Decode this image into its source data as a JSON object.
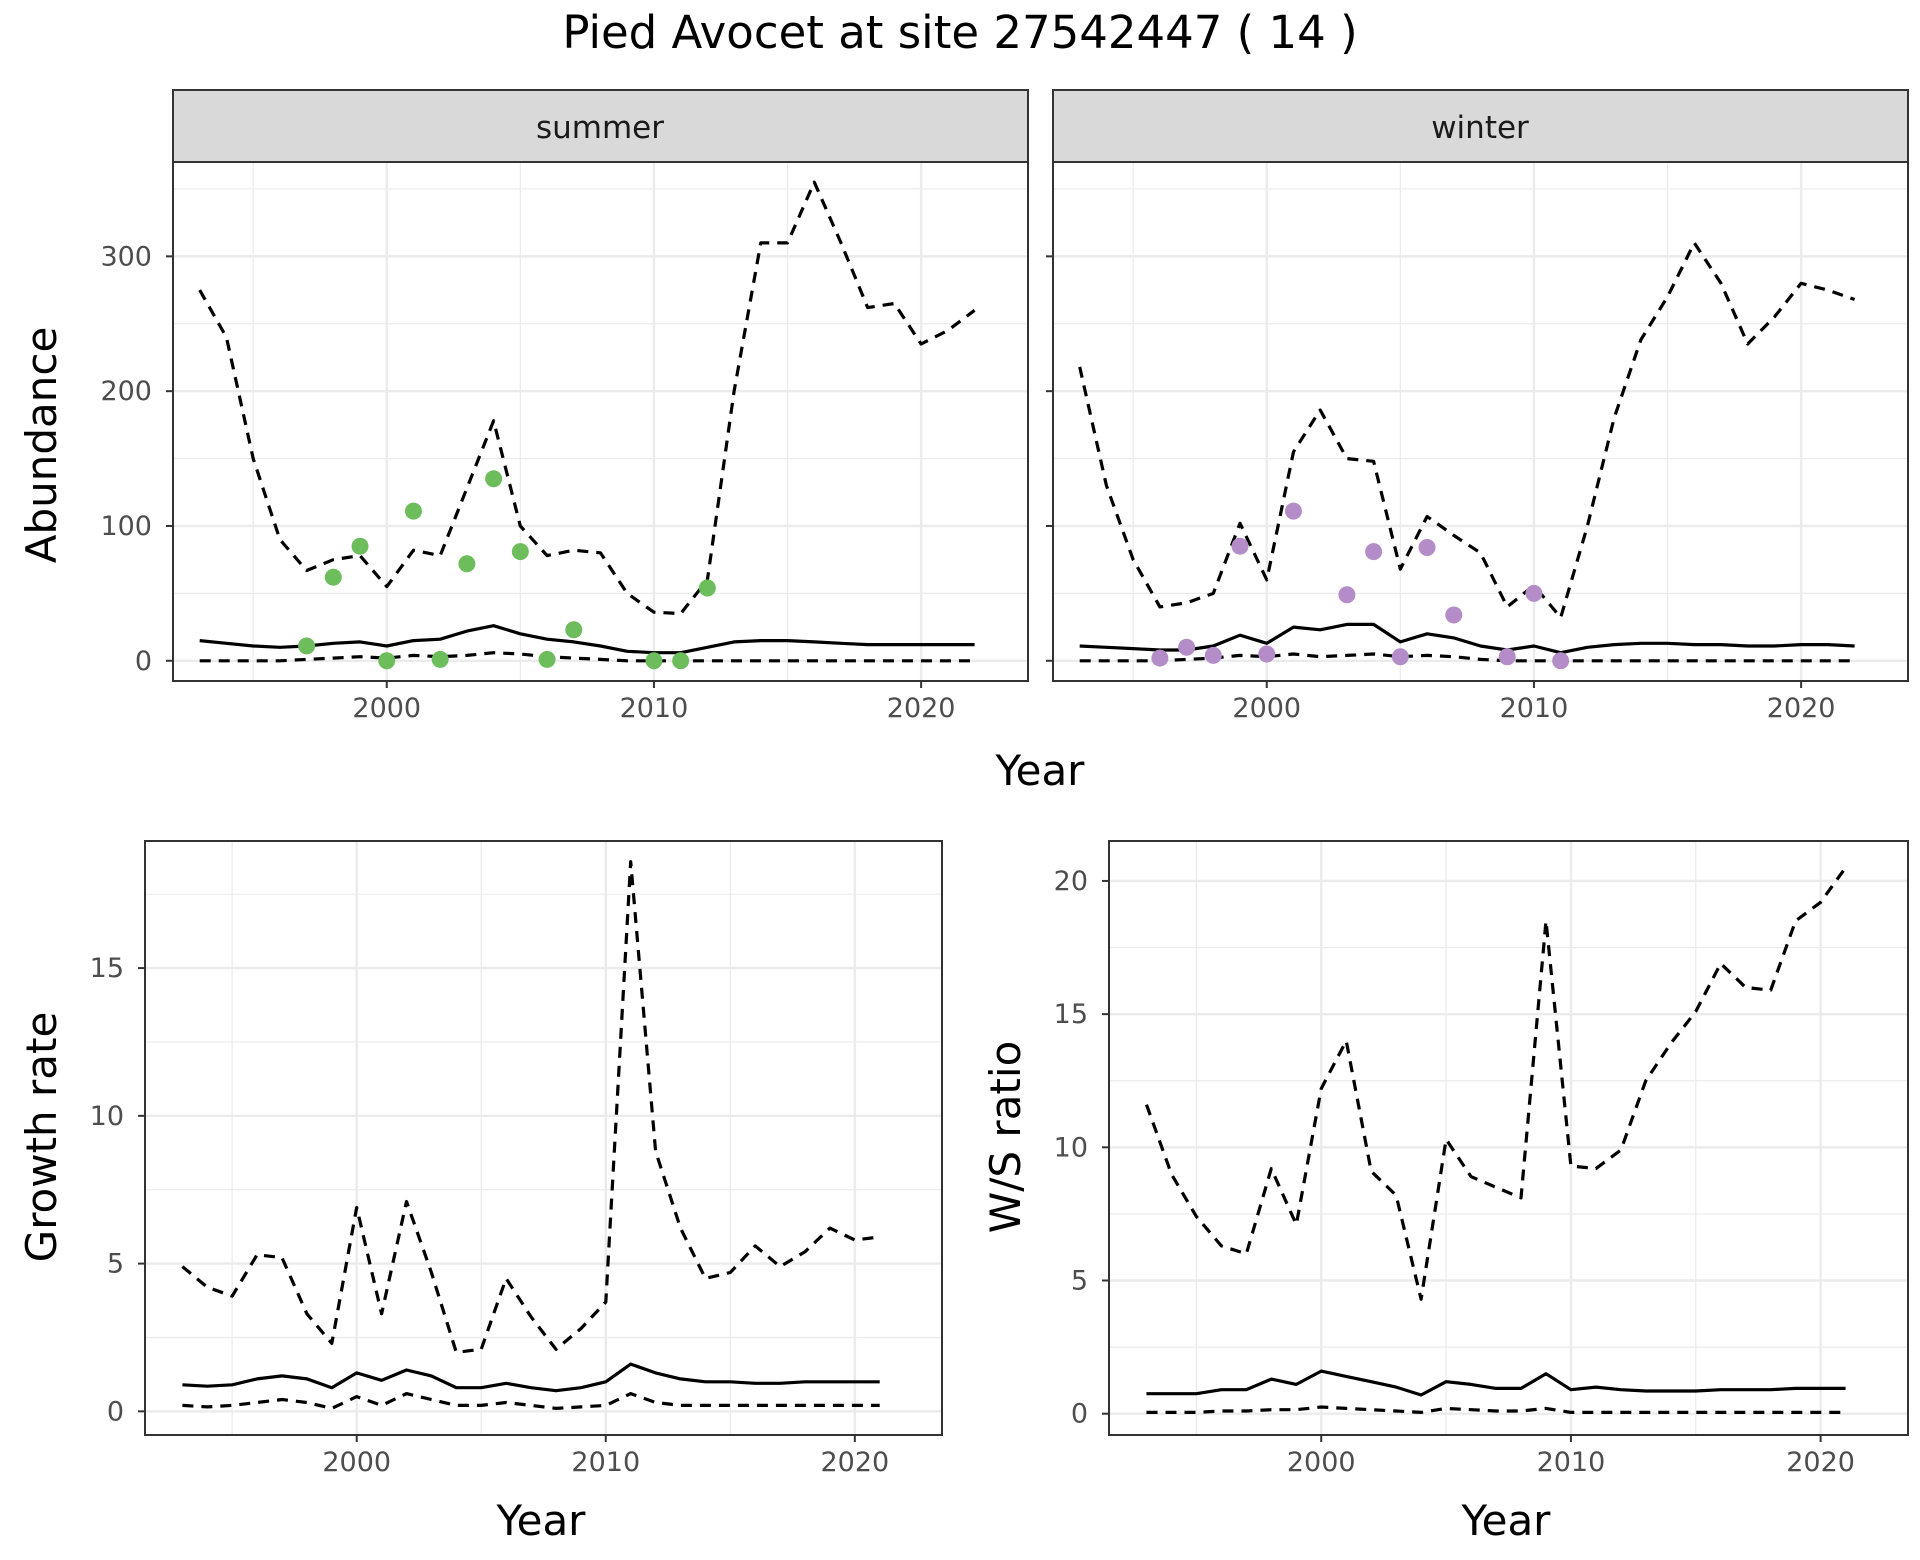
{
  "title": "Pied Avocet at site 27542447 ( 14 )",
  "colors": {
    "summer_points": "#6dbd5c",
    "winter_points": "#b48cc8",
    "line": "#000000",
    "strip_fill": "#d9d9d9",
    "grid": "#ebebeb"
  },
  "chart_data": [
    {
      "type": "line",
      "facet": "summer",
      "xlabel": "Year",
      "ylabel": "Abundance",
      "xlim": [
        1992,
        2024
      ],
      "ylim": [
        -15,
        370
      ],
      "xticks": [
        2000,
        2010,
        2020
      ],
      "yticks": [
        0,
        100,
        200,
        300
      ],
      "grid": true,
      "series": [
        {
          "style": "solid",
          "x": [
            1993,
            1994,
            1995,
            1996,
            1997,
            1998,
            1999,
            2000,
            2001,
            2002,
            2003,
            2004,
            2005,
            2006,
            2007,
            2008,
            2009,
            2010,
            2011,
            2012,
            2013,
            2014,
            2015,
            2016,
            2017,
            2018,
            2019,
            2020,
            2021,
            2022
          ],
          "values": [
            15,
            13,
            11,
            10,
            11,
            13,
            14,
            11,
            15,
            16,
            22,
            26,
            20,
            16,
            14,
            11,
            7,
            6,
            6,
            10,
            14,
            15,
            15,
            14,
            13,
            12,
            12,
            12,
            12,
            12
          ]
        },
        {
          "style": "dashed",
          "x": [
            1993,
            1994,
            1995,
            1996,
            1997,
            1998,
            1999,
            2000,
            2001,
            2002,
            2003,
            2004,
            2005,
            2006,
            2007,
            2008,
            2009,
            2010,
            2011,
            2012,
            2013,
            2014,
            2015,
            2016,
            2017,
            2018,
            2019,
            2020,
            2021,
            2022
          ],
          "values": [
            275,
            240,
            150,
            90,
            67,
            75,
            78,
            55,
            82,
            78,
            128,
            178,
            100,
            78,
            82,
            80,
            50,
            36,
            35,
            60,
            200,
            310,
            310,
            355,
            310,
            262,
            265,
            235,
            245,
            260
          ]
        },
        {
          "style": "dashed",
          "x": [
            1993,
            1994,
            1995,
            1996,
            1997,
            1998,
            1999,
            2000,
            2001,
            2002,
            2003,
            2004,
            2005,
            2006,
            2007,
            2008,
            2009,
            2010,
            2011,
            2012,
            2013,
            2014,
            2015,
            2016,
            2017,
            2018,
            2019,
            2020,
            2021,
            2022
          ],
          "values": [
            0,
            0,
            0,
            0,
            1,
            2,
            3,
            2,
            4,
            3,
            4,
            6,
            5,
            3,
            2,
            1,
            0,
            0,
            0,
            0,
            0,
            0,
            0,
            0,
            0,
            0,
            0,
            0,
            0,
            0
          ]
        }
      ],
      "points": {
        "x": [
          1997,
          1998,
          1999,
          2000,
          2001,
          2002,
          2003,
          2004,
          2005,
          2006,
          2007,
          2010,
          2011,
          2012
        ],
        "values": [
          11,
          62,
          85,
          0,
          111,
          1,
          72,
          135,
          81,
          1,
          23,
          0,
          0,
          54
        ]
      }
    },
    {
      "type": "line",
      "facet": "winter",
      "xlabel": "Year",
      "ylabel": "Abundance",
      "xlim": [
        1992,
        2024
      ],
      "ylim": [
        -15,
        370
      ],
      "xticks": [
        2000,
        2010,
        2020
      ],
      "yticks": [
        0,
        100,
        200,
        300
      ],
      "grid": true,
      "series": [
        {
          "style": "solid",
          "x": [
            1993,
            1994,
            1995,
            1996,
            1997,
            1998,
            1999,
            2000,
            2001,
            2002,
            2003,
            2004,
            2005,
            2006,
            2007,
            2008,
            2009,
            2010,
            2011,
            2012,
            2013,
            2014,
            2015,
            2016,
            2017,
            2018,
            2019,
            2020,
            2021,
            2022
          ],
          "values": [
            11,
            10,
            9,
            8,
            8,
            11,
            19,
            13,
            25,
            23,
            27,
            27,
            14,
            20,
            17,
            11,
            8,
            11,
            6,
            10,
            12,
            13,
            13,
            12,
            12,
            11,
            11,
            12,
            12,
            11
          ]
        },
        {
          "style": "dashed",
          "x": [
            1993,
            1994,
            1995,
            1996,
            1997,
            1998,
            1999,
            2000,
            2001,
            2002,
            2003,
            2004,
            2005,
            2006,
            2007,
            2008,
            2009,
            2010,
            2011,
            2012,
            2013,
            2014,
            2015,
            2016,
            2017,
            2018,
            2019,
            2020,
            2021,
            2022
          ],
          "values": [
            218,
            130,
            75,
            40,
            43,
            50,
            102,
            60,
            155,
            186,
            150,
            148,
            68,
            107,
            93,
            80,
            40,
            56,
            32,
            100,
            180,
            238,
            270,
            310,
            280,
            235,
            255,
            280,
            275,
            268
          ]
        },
        {
          "style": "dashed",
          "x": [
            1993,
            1994,
            1995,
            1996,
            1997,
            1998,
            1999,
            2000,
            2001,
            2002,
            2003,
            2004,
            2005,
            2006,
            2007,
            2008,
            2009,
            2010,
            2011,
            2012,
            2013,
            2014,
            2015,
            2016,
            2017,
            2018,
            2019,
            2020,
            2021,
            2022
          ],
          "values": [
            0,
            0,
            0,
            0,
            1,
            2,
            4,
            3,
            5,
            3,
            4,
            5,
            3,
            4,
            3,
            1,
            0,
            0,
            0,
            0,
            0,
            0,
            0,
            0,
            0,
            0,
            0,
            0,
            0,
            0
          ]
        }
      ],
      "points": {
        "x": [
          1996,
          1997,
          1998,
          1999,
          2000,
          2001,
          2003,
          2004,
          2005,
          2006,
          2007,
          2009,
          2010,
          2011
        ],
        "values": [
          2,
          10,
          4,
          85,
          5,
          111,
          49,
          81,
          3,
          84,
          34,
          3,
          50,
          0
        ]
      }
    },
    {
      "type": "line",
      "xlabel": "Year",
      "ylabel": "Growth rate",
      "xlim": [
        1991.5,
        2023.5
      ],
      "ylim": [
        -0.8,
        19.3
      ],
      "xticks": [
        2000,
        2010,
        2020
      ],
      "yticks": [
        0,
        5,
        10,
        15
      ],
      "grid": true,
      "series": [
        {
          "style": "solid",
          "x": [
            1993,
            1994,
            1995,
            1996,
            1997,
            1998,
            1999,
            2000,
            2001,
            2002,
            2003,
            2004,
            2005,
            2006,
            2007,
            2008,
            2009,
            2010,
            2011,
            2012,
            2013,
            2014,
            2015,
            2016,
            2017,
            2018,
            2019,
            2020,
            2021
          ],
          "values": [
            0.9,
            0.85,
            0.9,
            1.1,
            1.2,
            1.1,
            0.8,
            1.3,
            1.05,
            1.4,
            1.2,
            0.8,
            0.8,
            0.95,
            0.8,
            0.7,
            0.8,
            1.0,
            1.6,
            1.3,
            1.1,
            1.0,
            1.0,
            0.95,
            0.95,
            1.0,
            1.0,
            1.0,
            1.0
          ]
        },
        {
          "style": "dashed",
          "x": [
            1993,
            1994,
            1995,
            1996,
            1997,
            1998,
            1999,
            2000,
            2001,
            2002,
            2003,
            2004,
            2005,
            2006,
            2007,
            2008,
            2009,
            2010,
            2011,
            2012,
            2013,
            2014,
            2015,
            2016,
            2017,
            2018,
            2019,
            2020,
            2021
          ],
          "values": [
            4.9,
            4.2,
            3.9,
            5.3,
            5.2,
            3.3,
            2.3,
            6.9,
            3.3,
            7.1,
            4.7,
            2.0,
            2.1,
            4.5,
            3.2,
            2.1,
            2.8,
            3.7,
            18.6,
            8.8,
            6.2,
            4.5,
            4.7,
            5.6,
            4.9,
            5.4,
            6.2,
            5.8,
            5.9
          ]
        },
        {
          "style": "dashed",
          "x": [
            1993,
            1994,
            1995,
            1996,
            1997,
            1998,
            1999,
            2000,
            2001,
            2002,
            2003,
            2004,
            2005,
            2006,
            2007,
            2008,
            2009,
            2010,
            2011,
            2012,
            2013,
            2014,
            2015,
            2016,
            2017,
            2018,
            2019,
            2020,
            2021
          ],
          "values": [
            0.2,
            0.15,
            0.2,
            0.3,
            0.4,
            0.3,
            0.1,
            0.5,
            0.2,
            0.6,
            0.4,
            0.2,
            0.2,
            0.3,
            0.2,
            0.1,
            0.15,
            0.2,
            0.6,
            0.3,
            0.2,
            0.2,
            0.2,
            0.2,
            0.2,
            0.2,
            0.2,
            0.2,
            0.2
          ]
        }
      ]
    },
    {
      "type": "line",
      "xlabel": "Year",
      "ylabel": "W/S ratio",
      "xlim": [
        1991.5,
        2023.5
      ],
      "ylim": [
        -0.8,
        21.5
      ],
      "xticks": [
        2000,
        2010,
        2020
      ],
      "yticks": [
        0,
        5,
        10,
        15,
        20
      ],
      "grid": true,
      "series": [
        {
          "style": "solid",
          "x": [
            1993,
            1994,
            1995,
            1996,
            1997,
            1998,
            1999,
            2000,
            2001,
            2002,
            2003,
            2004,
            2005,
            2006,
            2007,
            2008,
            2009,
            2010,
            2011,
            2012,
            2013,
            2014,
            2015,
            2016,
            2017,
            2018,
            2019,
            2020,
            2021
          ],
          "values": [
            0.75,
            0.75,
            0.75,
            0.9,
            0.9,
            1.3,
            1.1,
            1.6,
            1.4,
            1.2,
            1.0,
            0.7,
            1.2,
            1.1,
            0.95,
            0.95,
            1.5,
            0.9,
            1.0,
            0.9,
            0.85,
            0.85,
            0.85,
            0.9,
            0.9,
            0.9,
            0.95,
            0.95,
            0.95
          ]
        },
        {
          "style": "dashed",
          "x": [
            1993,
            1994,
            1995,
            1996,
            1997,
            1998,
            1999,
            2000,
            2001,
            2002,
            2003,
            2004,
            2005,
            2006,
            2007,
            2008,
            2009,
            2010,
            2011,
            2012,
            2013,
            2014,
            2015,
            2016,
            2017,
            2018,
            2019,
            2020,
            2021
          ],
          "values": [
            11.6,
            9.0,
            7.4,
            6.3,
            6.0,
            9.2,
            7.1,
            12.2,
            14.0,
            9.1,
            8.2,
            4.3,
            10.3,
            8.9,
            8.5,
            8.1,
            18.5,
            9.3,
            9.2,
            9.9,
            12.5,
            13.9,
            15.1,
            16.9,
            16.0,
            15.9,
            18.5,
            19.2,
            20.5
          ]
        },
        {
          "style": "dashed",
          "x": [
            1993,
            1994,
            1995,
            1996,
            1997,
            1998,
            1999,
            2000,
            2001,
            2002,
            2003,
            2004,
            2005,
            2006,
            2007,
            2008,
            2009,
            2010,
            2011,
            2012,
            2013,
            2014,
            2015,
            2016,
            2017,
            2018,
            2019,
            2020,
            2021
          ],
          "values": [
            0.05,
            0.05,
            0.05,
            0.1,
            0.1,
            0.15,
            0.15,
            0.25,
            0.2,
            0.15,
            0.1,
            0.05,
            0.2,
            0.15,
            0.1,
            0.1,
            0.2,
            0.05,
            0.05,
            0.05,
            0.05,
            0.05,
            0.05,
            0.05,
            0.05,
            0.05,
            0.05,
            0.05,
            0.05
          ]
        }
      ]
    }
  ]
}
